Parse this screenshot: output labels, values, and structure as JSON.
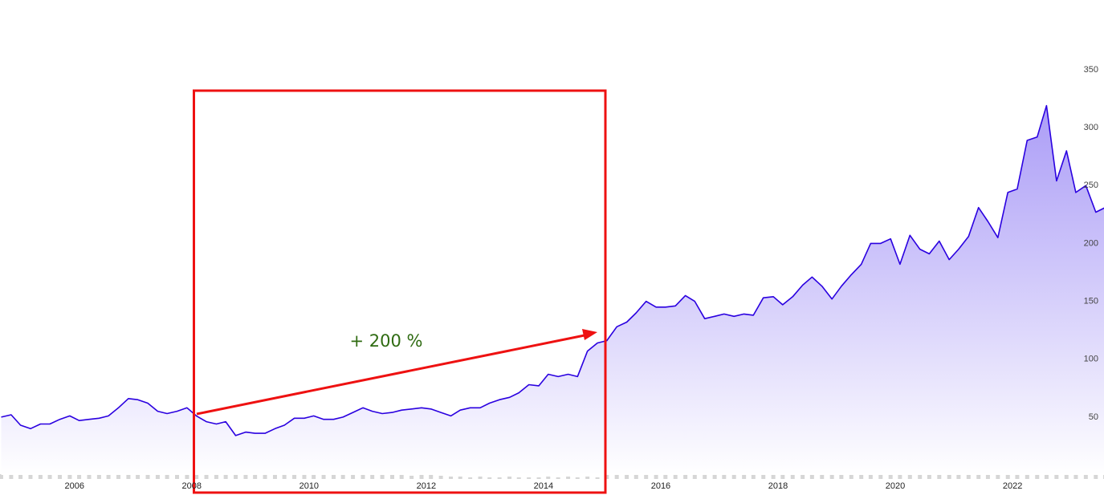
{
  "chart_data": {
    "type": "area",
    "annotation": "+ 200 %",
    "x": [
      2004.75,
      2004.92,
      2005.08,
      2005.25,
      2005.42,
      2005.58,
      2005.75,
      2005.92,
      2006.08,
      2006.25,
      2006.42,
      2006.58,
      2006.75,
      2006.92,
      2007.08,
      2007.25,
      2007.42,
      2007.58,
      2007.75,
      2007.92,
      2008.08,
      2008.25,
      2008.42,
      2008.58,
      2008.75,
      2008.92,
      2009.08,
      2009.25,
      2009.42,
      2009.58,
      2009.75,
      2009.92,
      2010.08,
      2010.25,
      2010.42,
      2010.58,
      2010.75,
      2010.92,
      2011.08,
      2011.25,
      2011.42,
      2011.58,
      2011.75,
      2011.92,
      2012.08,
      2012.25,
      2012.42,
      2012.58,
      2012.75,
      2012.92,
      2013.08,
      2013.25,
      2013.42,
      2013.58,
      2013.75,
      2013.92,
      2014.08,
      2014.25,
      2014.42,
      2014.58,
      2014.75,
      2014.92,
      2015.08,
      2015.25,
      2015.42,
      2015.58,
      2015.75,
      2015.92,
      2016.08,
      2016.25,
      2016.42,
      2016.58,
      2016.75,
      2016.92,
      2017.08,
      2017.25,
      2017.42,
      2017.58,
      2017.75,
      2017.92,
      2018.08,
      2018.25,
      2018.42,
      2018.58,
      2018.75,
      2018.92,
      2019.08,
      2019.25,
      2019.42,
      2019.58,
      2019.75,
      2019.92,
      2020.08,
      2020.25,
      2020.42,
      2020.58,
      2020.75,
      2020.92,
      2021.08,
      2021.25,
      2021.42,
      2021.58,
      2021.75,
      2021.92,
      2022.08,
      2022.25,
      2022.42,
      2022.58,
      2022.75,
      2022.92,
      2023.08,
      2023.25,
      2023.42,
      2023.58
    ],
    "values": [
      50,
      52,
      43,
      40,
      44,
      44,
      48,
      51,
      47,
      48,
      49,
      51,
      58,
      66,
      65,
      62,
      55,
      53,
      55,
      58,
      51,
      46,
      44,
      46,
      34,
      37,
      36,
      36,
      40,
      43,
      49,
      49,
      51,
      48,
      48,
      50,
      54,
      58,
      55,
      53,
      54,
      56,
      57,
      58,
      57,
      54,
      51,
      56,
      58,
      58,
      62,
      65,
      67,
      71,
      78,
      77,
      87,
      85,
      87,
      85,
      107,
      114,
      116,
      128,
      132,
      140,
      150,
      145,
      145,
      146,
      155,
      150,
      135,
      137,
      139,
      137,
      139,
      138,
      153,
      154,
      147,
      154,
      164,
      171,
      163,
      152,
      163,
      173,
      182,
      200,
      200,
      204,
      182,
      207,
      195,
      191,
      202,
      186,
      195,
      206,
      231,
      219,
      205,
      244,
      247,
      289,
      292,
      319,
      254,
      280,
      244,
      250,
      227,
      231
    ],
    "volume": [
      6,
      24,
      14,
      13,
      6,
      8,
      15,
      10,
      12,
      10,
      8,
      15,
      11,
      12,
      16,
      18,
      10,
      9,
      10,
      14,
      20,
      10,
      9,
      7,
      6,
      8,
      7,
      6,
      8,
      9,
      6,
      7,
      8,
      6,
      7,
      6,
      5,
      6,
      9,
      18,
      6,
      10,
      4,
      5,
      10,
      4,
      3,
      3,
      2,
      3,
      2,
      2,
      3,
      2,
      2,
      2,
      3,
      2,
      3,
      2,
      3,
      2,
      12,
      14,
      13,
      16,
      12,
      8,
      55,
      20,
      65,
      25,
      57,
      18,
      17,
      15,
      25,
      17,
      20,
      17,
      25,
      28,
      22,
      38,
      17,
      14,
      16,
      20,
      17,
      12,
      22,
      12,
      20,
      50,
      16,
      14,
      16,
      20,
      12,
      25,
      20,
      17,
      14,
      16,
      17,
      25,
      16,
      25,
      14,
      18,
      10,
      12,
      15,
      10
    ],
    "color": "#2a00e0",
    "fill_color": "#a798f6",
    "volume_color": "#d6d6d6",
    "xlim": [
      2004.73,
      2023.56
    ],
    "xticks": [
      2006,
      2008,
      2010,
      2012,
      2014,
      2016,
      2018,
      2020,
      2022
    ],
    "ylim": [
      0,
      350
    ],
    "yticks": [
      50,
      100,
      150,
      200,
      250,
      300,
      350
    ],
    "grid": false
  }
}
